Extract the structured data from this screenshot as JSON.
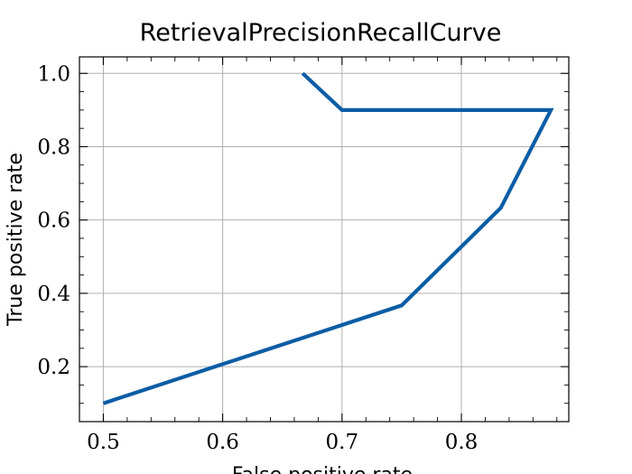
{
  "chart_data": {
    "type": "line",
    "title": "RetrievalPrecisionRecallCurve",
    "xlabel": "False positive rate",
    "ylabel": "True positive rate",
    "xlim": [
      0.48,
      0.89
    ],
    "ylim": [
      0.05,
      1.045
    ],
    "x_ticks": [
      0.5,
      0.6,
      0.7,
      0.8
    ],
    "y_ticks": [
      0.2,
      0.4,
      0.6,
      0.8,
      1.0
    ],
    "x_tick_labels": [
      "0.5",
      "0.6",
      "0.7",
      "0.8"
    ],
    "y_tick_labels": [
      "0.2",
      "0.4",
      "0.6",
      "0.8",
      "1.0"
    ],
    "grid": true,
    "series": [
      {
        "color": "#0c5da5",
        "x": [
          0.5,
          0.75,
          0.833,
          0.875,
          0.7,
          0.667
        ],
        "y": [
          0.1,
          0.367,
          0.633,
          0.9,
          0.9,
          1.0
        ]
      }
    ]
  }
}
